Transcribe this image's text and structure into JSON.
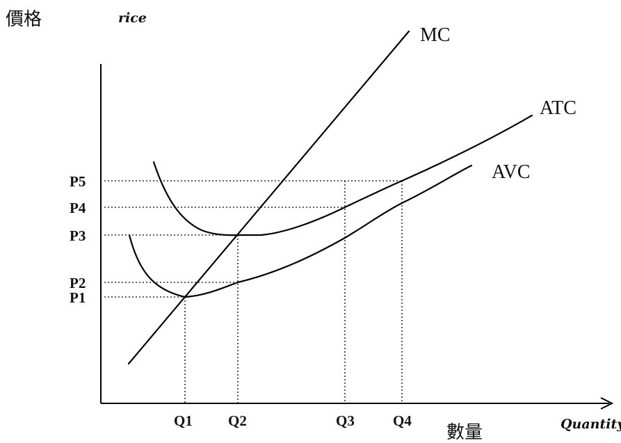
{
  "diagram": {
    "y_axis_label_zh": "價格",
    "y_axis_label_en": "rice",
    "x_axis_label_zh": "數量",
    "x_axis_label_en": "Quantity",
    "curves": {
      "mc": "MC",
      "atc": "ATC",
      "avc": "AVC"
    },
    "price_ticks": [
      "P5",
      "P4",
      "P3",
      "P2",
      "P1"
    ],
    "quantity_ticks": [
      "Q1",
      "Q2",
      "Q3",
      "Q4"
    ]
  }
}
